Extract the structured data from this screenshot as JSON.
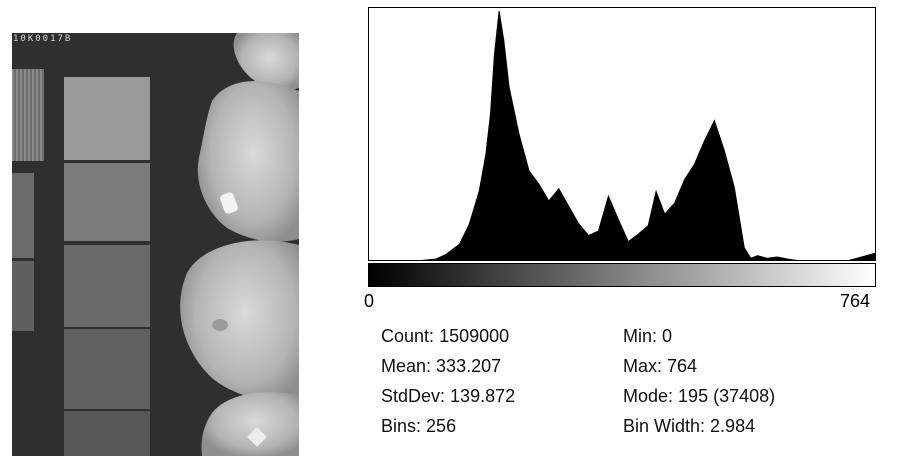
{
  "image_panel": {
    "id_label": "10K0017B"
  },
  "histogram": {
    "axis_min_label": "0",
    "axis_max_label": "764",
    "stats_left": [
      {
        "label": "Count:",
        "value": "1509000"
      },
      {
        "label": "Mean:",
        "value": "333.207"
      },
      {
        "label": "StdDev:",
        "value": "139.872"
      },
      {
        "label": "Bins:",
        "value": "256"
      }
    ],
    "stats_right": [
      {
        "label": "Min:",
        "value": "0"
      },
      {
        "label": "Max:",
        "value": "764"
      },
      {
        "label": "Mode:",
        "value": "195 (37408)"
      },
      {
        "label": "Bin Width:",
        "value": "2.984"
      }
    ]
  },
  "chart_data": {
    "type": "area",
    "x_range": [
      0,
      764
    ],
    "y_range": [
      0,
      37408
    ],
    "x": [
      0,
      70,
      100,
      115,
      135,
      150,
      165,
      175,
      182,
      188,
      195,
      202,
      210,
      225,
      240,
      255,
      270,
      285,
      300,
      315,
      330,
      345,
      360,
      375,
      390,
      405,
      420,
      432,
      445,
      460,
      475,
      490,
      505,
      520,
      535,
      550,
      565,
      575,
      585,
      600,
      615,
      630,
      650,
      680,
      700,
      720,
      764
    ],
    "y": [
      0,
      0,
      300,
      1000,
      2500,
      5500,
      10500,
      16000,
      22000,
      31000,
      37408,
      33000,
      26000,
      19000,
      13500,
      11500,
      9000,
      10800,
      8200,
      5600,
      3800,
      4500,
      9700,
      6200,
      2900,
      4000,
      5300,
      10400,
      7000,
      8700,
      12200,
      14500,
      18000,
      21000,
      16500,
      11000,
      2000,
      400,
      800,
      400,
      600,
      300,
      0,
      0,
      0,
      0,
      1200
    ]
  }
}
